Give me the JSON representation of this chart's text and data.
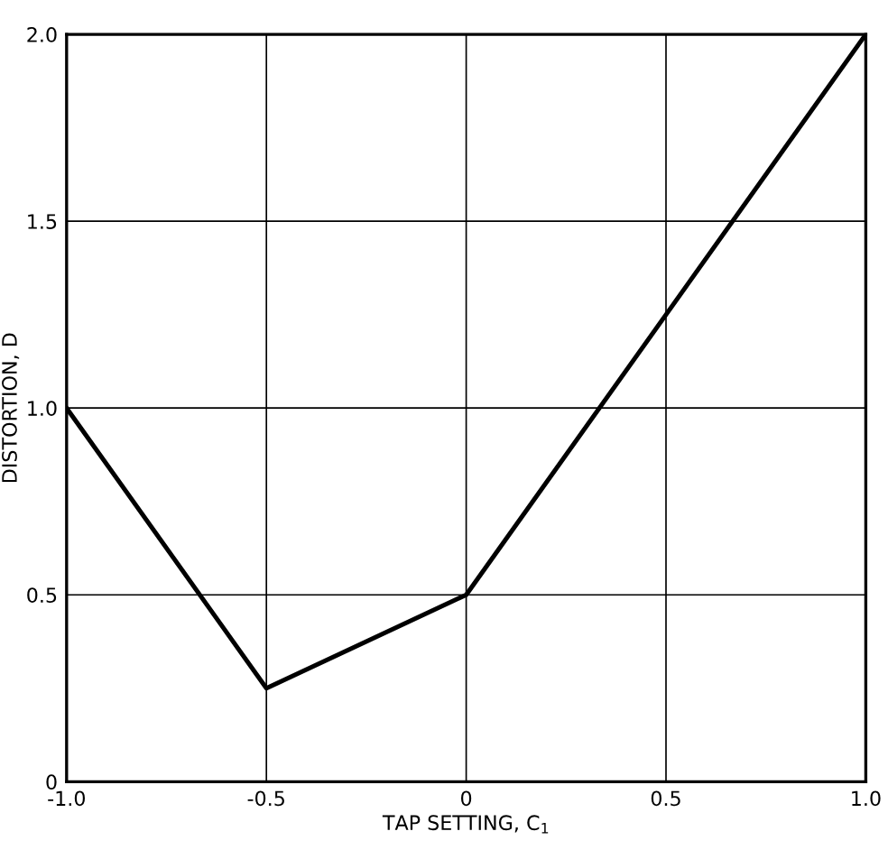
{
  "chart_data": {
    "type": "line",
    "xlabel": "TAP SETTING, C$_{1}$",
    "ylabel": "DISTORTION, D",
    "x": [
      -1,
      -0.5,
      0,
      1
    ],
    "series": [
      {
        "color": "#000000",
        "values": [
          1,
          0.25,
          0.5,
          2
        ]
      }
    ],
    "xlim": [
      -1,
      1
    ],
    "ylim": [
      0,
      2
    ],
    "xticks": [
      {
        "value": -1,
        "label": "-1.0"
      },
      {
        "value": -0.5,
        "label": "-0.5"
      },
      0,
      0.5,
      {
        "value": 1,
        "label": "1.0"
      }
    ],
    "yticks": [
      0,
      0.5,
      {
        "value": 1,
        "label": "1.0"
      },
      1.5,
      {
        "value": 2,
        "label": "2.0"
      }
    ],
    "grid": true,
    "marker": "none",
    "line_style": "solid"
  }
}
